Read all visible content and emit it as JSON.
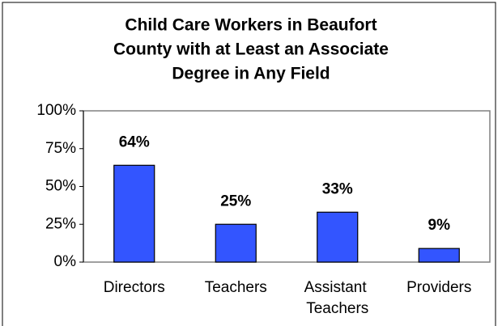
{
  "chart_data": {
    "type": "bar",
    "title": [
      "Child Care Workers in Beaufort",
      "County with at Least an Associate",
      "Degree in Any Field"
    ],
    "categories": [
      "Directors",
      "Teachers",
      "Assistant Teachers",
      "Providers"
    ],
    "values": [
      64,
      25,
      33,
      9
    ],
    "value_labels": [
      "64%",
      "25%",
      "33%",
      "9%"
    ],
    "color": "#3355ff",
    "ylim": [
      0,
      100
    ],
    "yticks": [
      {
        "value": 0,
        "label": "0%"
      },
      {
        "value": 25,
        "label": "25%"
      },
      {
        "value": 50,
        "label": "50%"
      },
      {
        "value": 75,
        "label": "75%"
      },
      {
        "value": 100,
        "label": "100%"
      }
    ],
    "grid": false
  }
}
